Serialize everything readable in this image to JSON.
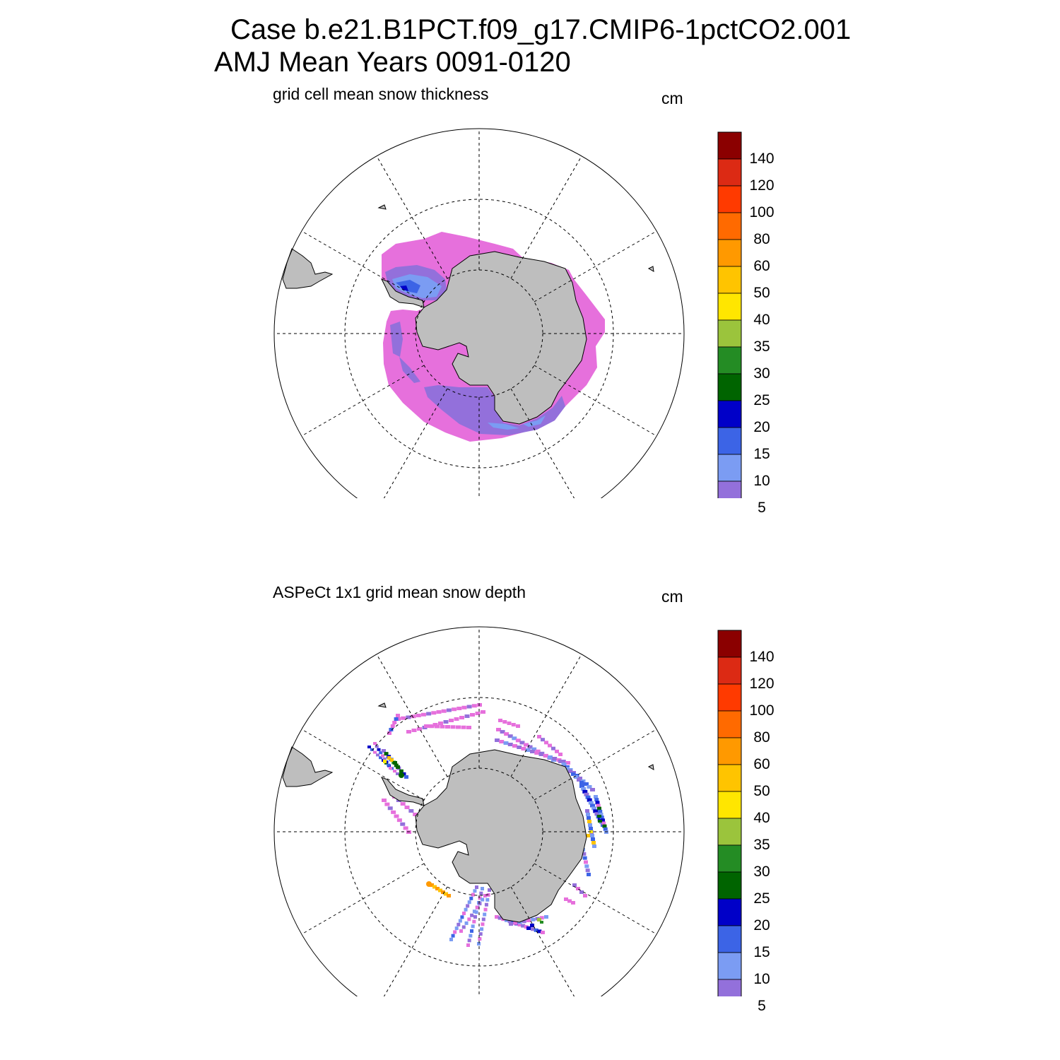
{
  "title": {
    "case": "Case b.e21.B1PCT.f09_g17.CMIP6-1pctCO2.001",
    "period": "AMJ Mean   Years 0091-0120"
  },
  "colorbar": {
    "levels": [
      "140",
      "120",
      "100",
      "80",
      "60",
      "50",
      "40",
      "35",
      "30",
      "25",
      "20",
      "15",
      "10",
      "5"
    ],
    "colors": [
      "#8b0000",
      "#dc2a14",
      "#ff3a00",
      "#ff6a00",
      "#ff9900",
      "#ffc400",
      "#ffe600",
      "#9bc43c",
      "#248c24",
      "#006400",
      "#0000c8",
      "#3c64e6",
      "#7b9cf3",
      "#9370db",
      "#e670dc"
    ]
  },
  "colors": {
    "land": "#bebebe",
    "grid": "#000000"
  },
  "panels": [
    {
      "subtitle": "grid cell mean snow thickness",
      "units": "cm",
      "dataset": "model"
    },
    {
      "subtitle": "ASPeCt 1x1 grid mean snow depth",
      "units": "cm",
      "dataset": "observations"
    }
  ]
}
